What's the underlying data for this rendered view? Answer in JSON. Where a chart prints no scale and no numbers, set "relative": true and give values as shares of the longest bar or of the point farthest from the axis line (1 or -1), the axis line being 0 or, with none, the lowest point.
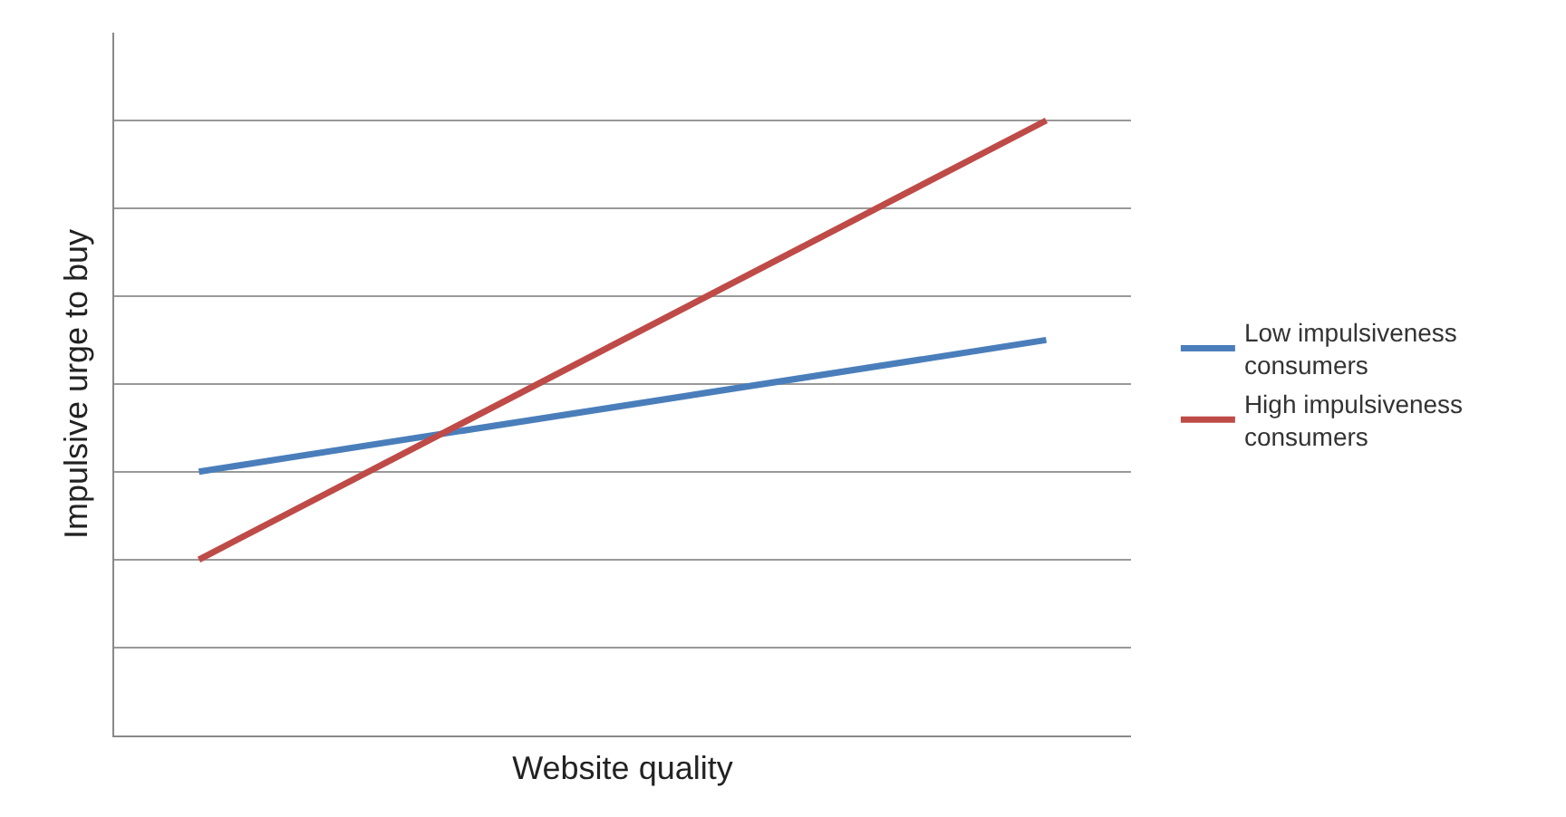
{
  "chart_data": {
    "type": "line",
    "relative": true,
    "xlabel": "Website quality",
    "ylabel": "Impulsive urge to buy",
    "categories": [
      null,
      null
    ],
    "series": [
      {
        "name": "Low impulsiveness consumers",
        "color": "#4a7ebb",
        "values": [
          0.429,
          0.643
        ]
      },
      {
        "name": "High impulsiveness consumers",
        "color": "#be4b48",
        "values": [
          0.286,
          1
        ]
      }
    ],
    "grid": "y",
    "legend": "right",
    "marker": "none",
    "line_style": "solid"
  }
}
